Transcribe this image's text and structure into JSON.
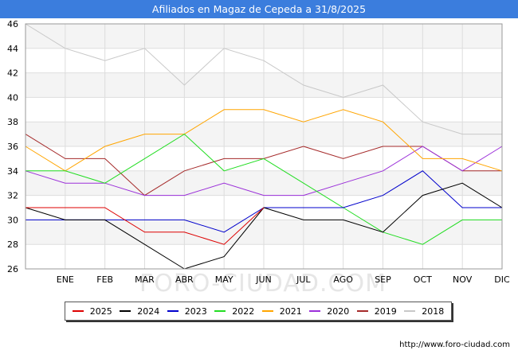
{
  "title": "Afiliados en Magaz de Cepeda a 31/8/2025",
  "source": "http://www.foro-ciudad.com",
  "watermark": "FORO-CIUDAD.COM",
  "chart_data": {
    "type": "line",
    "categories": [
      "",
      "ENE",
      "FEB",
      "MAR",
      "ABR",
      "MAY",
      "JUN",
      "JUL",
      "AGO",
      "SEP",
      "OCT",
      "NOV",
      "DIC"
    ],
    "ylim": [
      26,
      46
    ],
    "yticks": [
      26,
      28,
      30,
      32,
      34,
      36,
      38,
      40,
      42,
      44,
      46
    ],
    "grid": true,
    "legend": "bottom",
    "series": [
      {
        "name": "2018",
        "color": "#c8c8c8",
        "values": [
          46,
          44,
          43,
          44,
          41,
          44,
          43,
          41,
          40,
          41,
          38,
          37,
          37
        ]
      },
      {
        "name": "2019",
        "color": "#a52a2a",
        "values": [
          37,
          35,
          35,
          32,
          34,
          35,
          35,
          36,
          35,
          36,
          36,
          34,
          34
        ]
      },
      {
        "name": "2020",
        "color": "#9b30d9",
        "values": [
          34,
          33,
          33,
          32,
          32,
          33,
          32,
          32,
          33,
          34,
          36,
          34,
          36
        ]
      },
      {
        "name": "2021",
        "color": "#ffa500",
        "values": [
          36,
          34,
          36,
          37,
          37,
          39,
          39,
          38,
          39,
          38,
          35,
          35,
          34
        ]
      },
      {
        "name": "2022",
        "color": "#22dd22",
        "values": [
          34,
          34,
          33,
          35,
          37,
          34,
          35,
          33,
          31,
          29,
          28,
          30,
          30
        ]
      },
      {
        "name": "2023",
        "color": "#0000cc",
        "values": [
          30,
          30,
          30,
          30,
          30,
          29,
          31,
          31,
          31,
          32,
          34,
          31,
          31
        ]
      },
      {
        "name": "2024",
        "color": "#000000",
        "values": [
          31,
          30,
          30,
          28,
          26,
          27,
          31,
          30,
          30,
          29,
          32,
          33,
          31
        ]
      },
      {
        "name": "2025",
        "color": "#dd0000",
        "values": [
          31,
          31,
          31,
          29,
          29,
          28,
          31,
          null,
          null,
          null,
          null,
          null,
          null
        ]
      }
    ],
    "legend_order": [
      "2025",
      "2024",
      "2023",
      "2022",
      "2021",
      "2020",
      "2019",
      "2018"
    ]
  }
}
